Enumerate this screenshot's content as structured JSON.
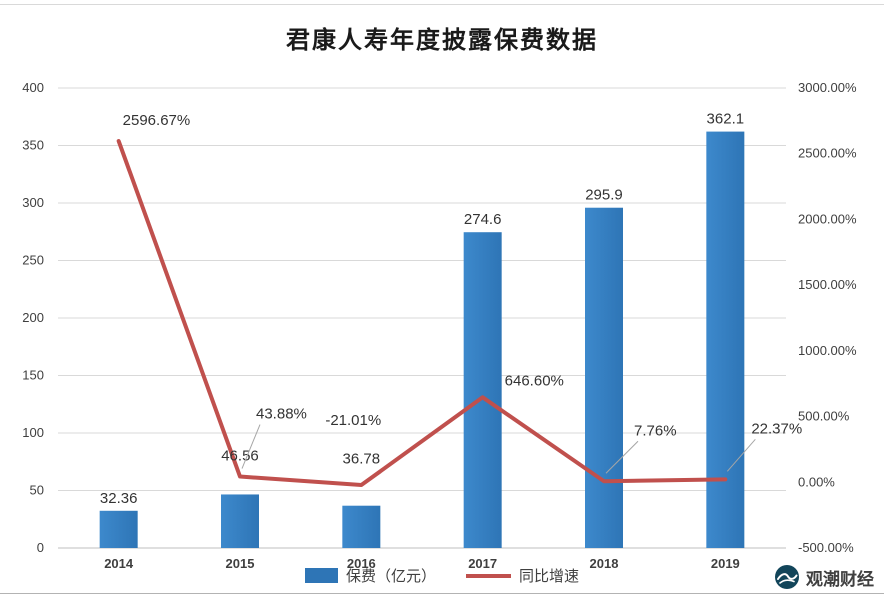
{
  "title": "君康人寿年度披露保费数据",
  "legend": [
    {
      "label": "保费（亿元）"
    },
    {
      "label": "同比增速"
    }
  ],
  "watermark": {
    "text": "观潮财经",
    "logo_color": "#12455A"
  },
  "chart_data": {
    "type": "combo",
    "title": "君康人寿年度披露保费数据",
    "categories": [
      "2014",
      "2015",
      "2016",
      "2017",
      "2018",
      "2019"
    ],
    "series": [
      {
        "name": "保费（亿元）",
        "type": "bar",
        "axis": "left",
        "color": "#2E75B6",
        "color_light": "#3D89CC",
        "values": [
          32.36,
          46.56,
          36.78,
          274.6,
          295.9,
          362.1
        ],
        "labels": [
          "32.36",
          "46.56",
          "36.78",
          "274.6",
          "295.9",
          "362.1"
        ]
      },
      {
        "name": "同比增速",
        "type": "line",
        "axis": "right",
        "color": "#C0504D",
        "values": [
          2596.67,
          43.88,
          -21.01,
          646.6,
          7.76,
          22.37
        ],
        "labels": [
          "2596.67%",
          "43.88%",
          "-21.01%",
          "646.60%",
          "7.76%",
          "22.37%"
        ]
      }
    ],
    "left_axis": {
      "min": 0,
      "max": 400,
      "step": 50,
      "ticks": [
        "0",
        "50",
        "100",
        "150",
        "200",
        "250",
        "300",
        "350",
        "400"
      ]
    },
    "right_axis": {
      "min": -500,
      "max": 3000,
      "step": 500,
      "ticks": [
        "-500.00%",
        "0.00%",
        "500.00%",
        "1000.00%",
        "1500.00%",
        "2000.00%",
        "2500.00%",
        "3000.00%"
      ]
    },
    "grid": true,
    "legend_position": "bottom",
    "grid_color": "#D9D9D9",
    "axis_line_color": "#BFBFBF",
    "tick_label_color": "#3f3f3f"
  }
}
